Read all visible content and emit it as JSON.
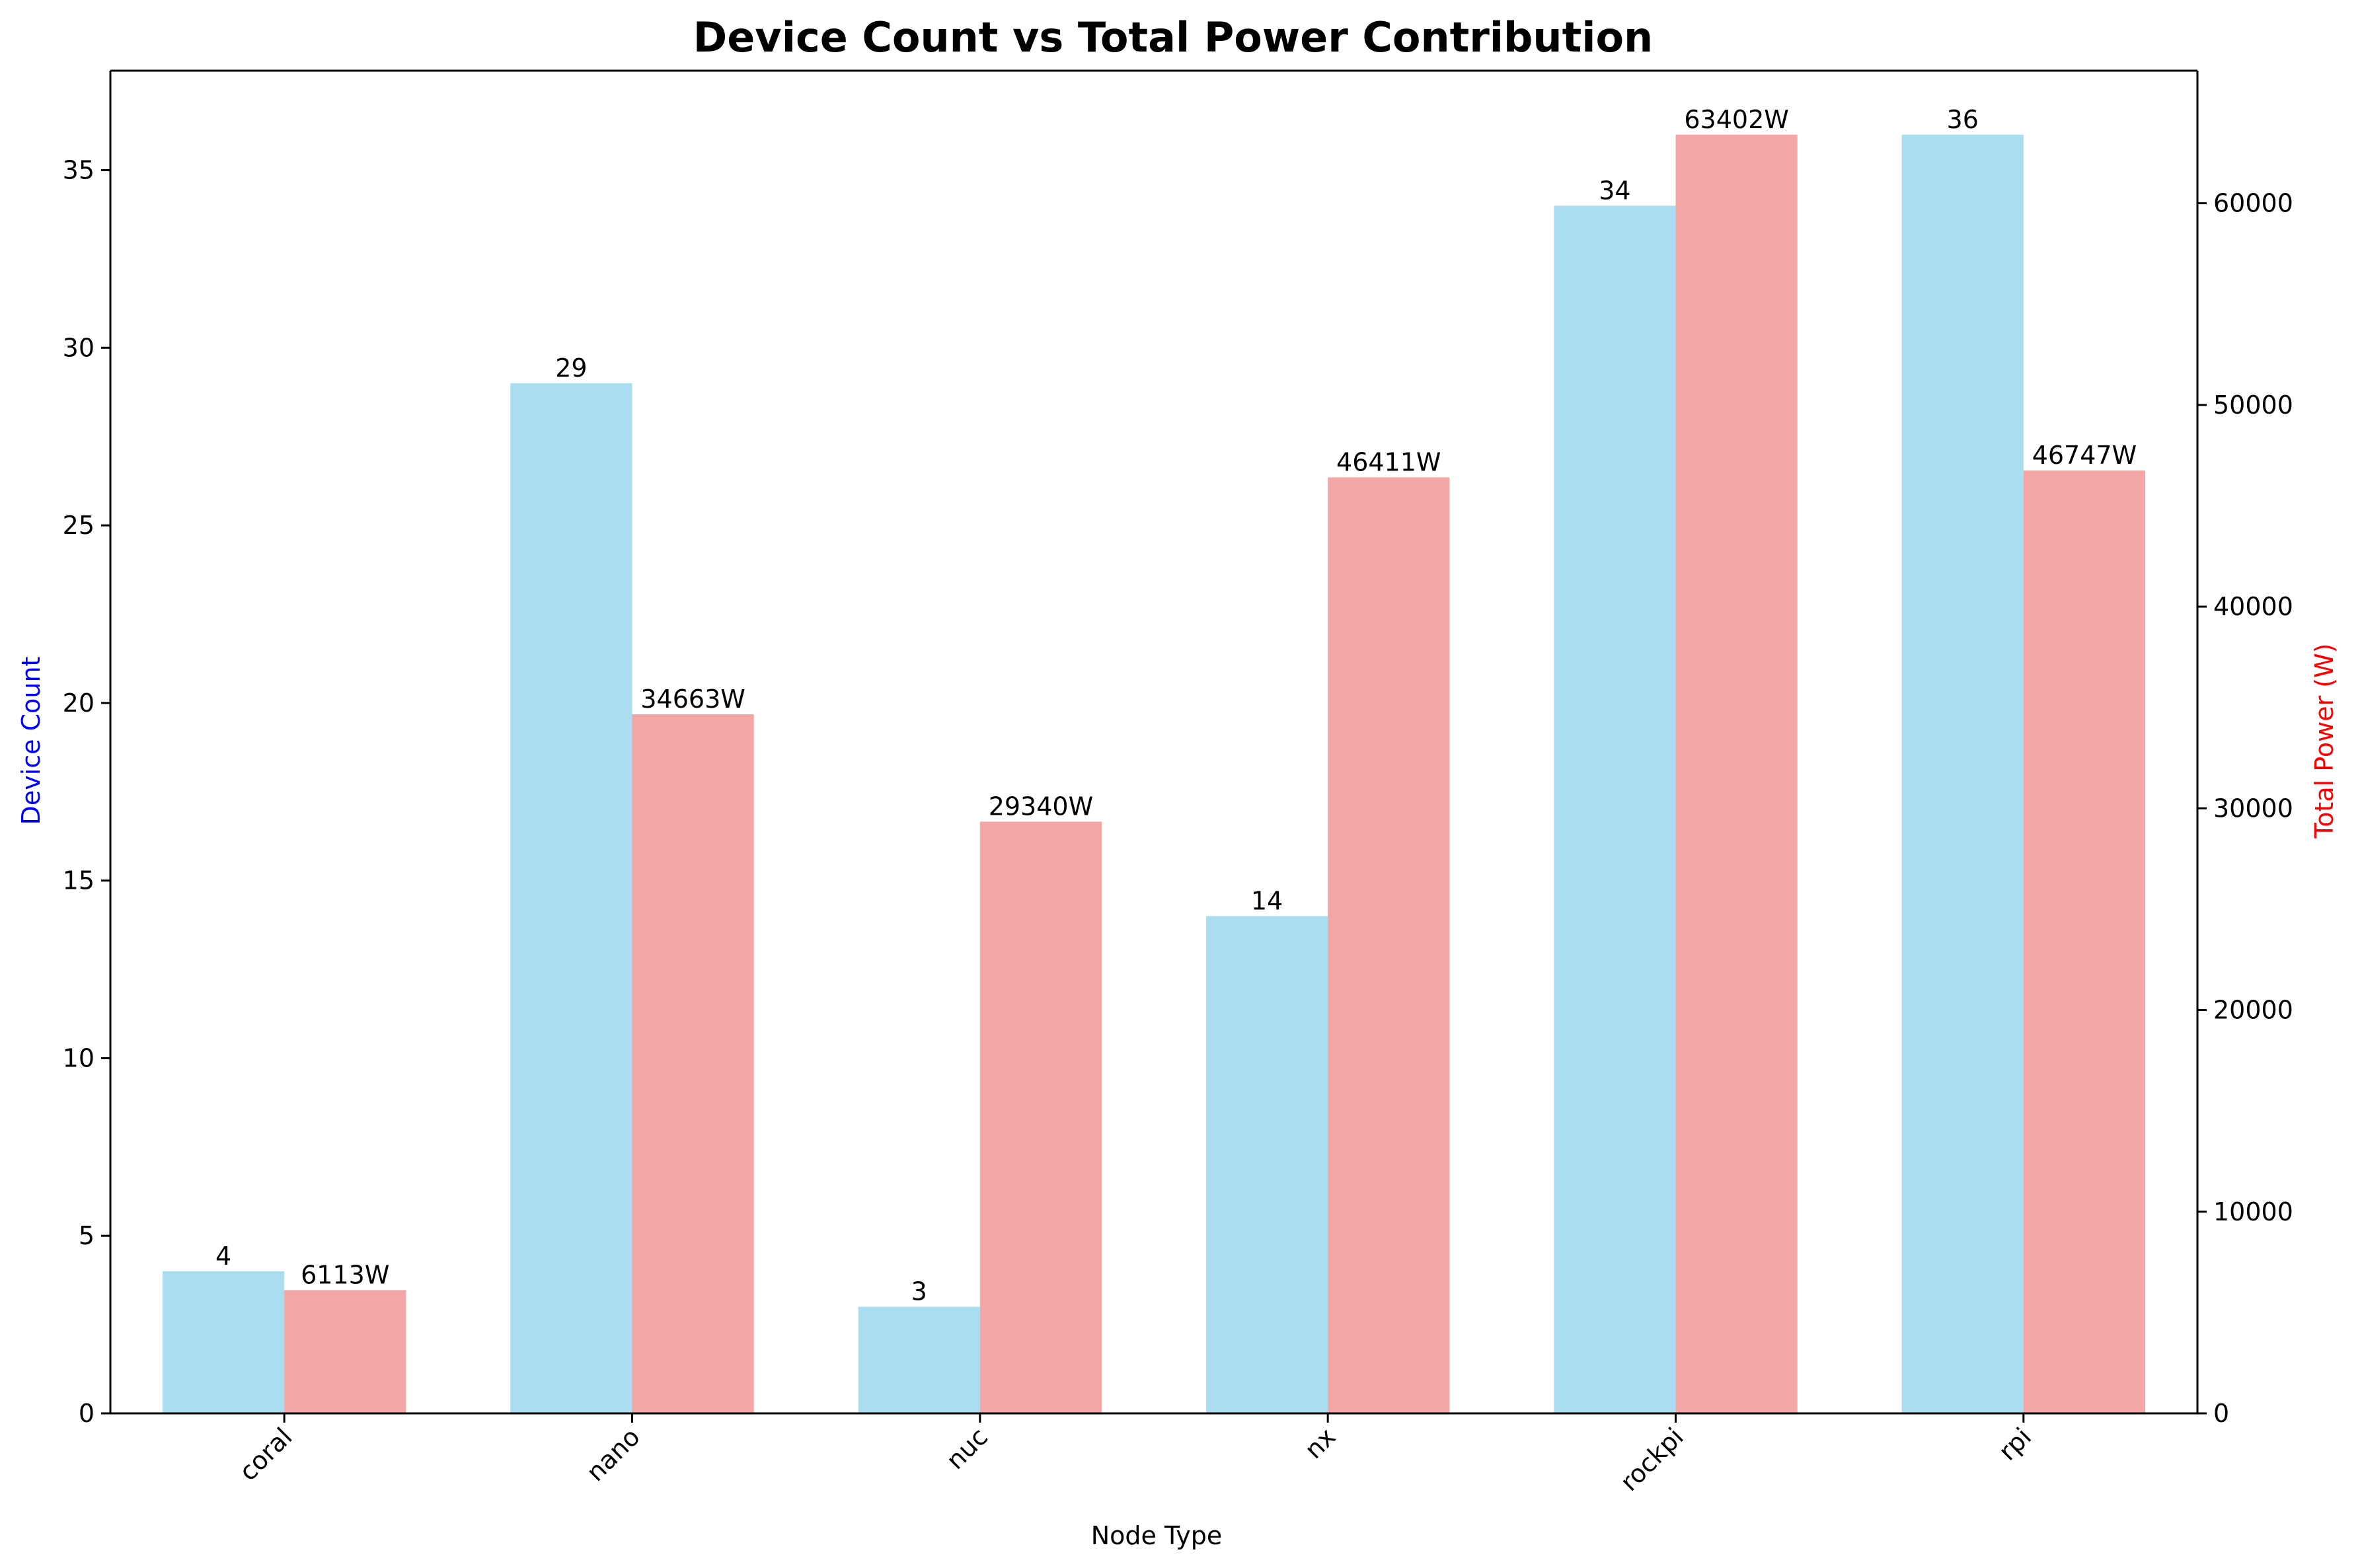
{
  "chart_data": {
    "type": "bar",
    "title": "Device Count vs Total Power Contribution",
    "xlabel": "Node Type",
    "ylabel_left": "Device Count",
    "ylabel_right": "Total Power (W)",
    "categories": [
      "coral",
      "nano",
      "nuc",
      "nx",
      "rockpi",
      "rpi"
    ],
    "series": [
      {
        "name": "Device Count",
        "axis": "left",
        "color": "#87CEEB",
        "values": [
          4,
          29,
          3,
          14,
          34,
          36
        ],
        "labels": [
          "4",
          "29",
          "3",
          "14",
          "34",
          "36"
        ]
      },
      {
        "name": "Total Power (W)",
        "axis": "right",
        "color": "#F08080",
        "values": [
          6113,
          34663,
          29340,
          46411,
          63402,
          46747
        ],
        "labels": [
          "6113W",
          "34663W",
          "29340W",
          "46411W",
          "63402W",
          "46747W"
        ]
      }
    ],
    "ylim_left": [
      0,
      37.8
    ],
    "ylim_right": [
      0,
      66572
    ],
    "yticks_left": [
      0,
      5,
      10,
      15,
      20,
      25,
      30,
      35
    ],
    "yticks_right": [
      0,
      10000,
      20000,
      30000,
      40000,
      50000,
      60000
    ],
    "ylabel_left_color": "#0000FF",
    "ylabel_right_color": "#FF0000",
    "grid": false,
    "legend": false
  }
}
